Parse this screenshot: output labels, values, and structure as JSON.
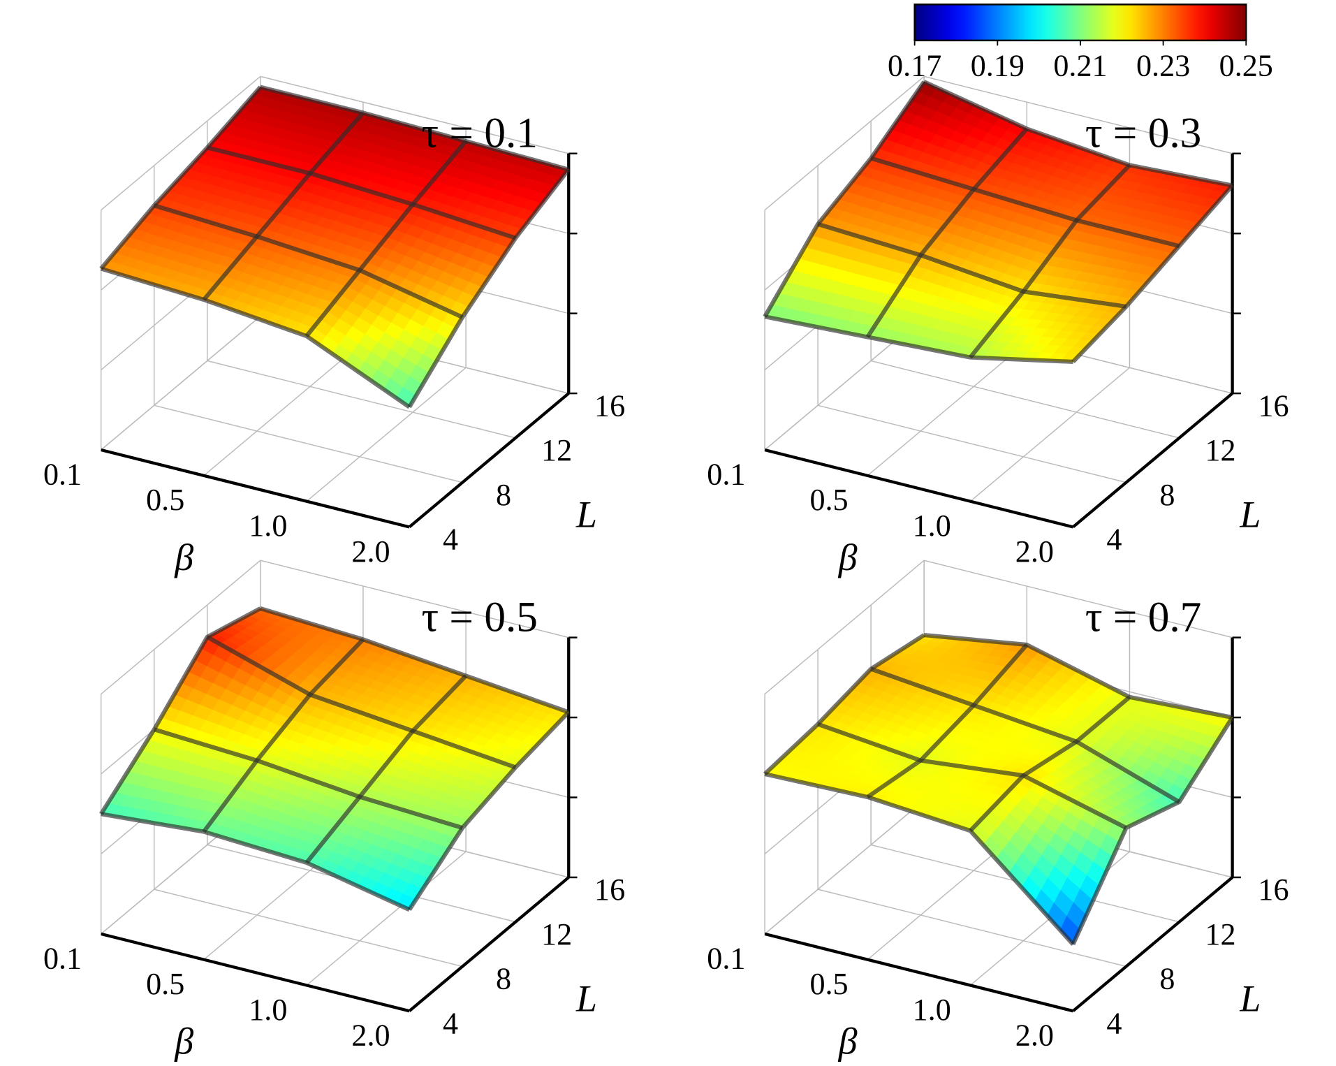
{
  "colorbar": {
    "colormap": "jet",
    "lim": [
      0.17,
      0.25
    ],
    "ticks": [
      0.17,
      0.19,
      0.21,
      0.23,
      0.25
    ]
  },
  "chart_data": [
    {
      "type": "surface",
      "title": "τ = 0.1",
      "xlabel": "β",
      "ylabel": "L",
      "categories": [
        "0.1",
        "0.5",
        "1.0",
        "2.0"
      ],
      "yticks": [
        4,
        8,
        12,
        16
      ],
      "ylim": [
        4,
        16
      ],
      "zlim": [
        0.16,
        0.25
      ],
      "zticks": [
        0.16,
        0.19,
        0.22,
        0.25
      ],
      "grid": true,
      "z": [
        [
          0.228,
          0.226,
          0.222,
          0.205
        ],
        [
          0.235,
          0.233,
          0.23,
          0.222
        ],
        [
          0.24,
          0.24,
          0.238,
          0.235
        ],
        [
          0.246,
          0.246,
          0.245,
          0.244
        ]
      ]
    },
    {
      "type": "surface",
      "title": "τ = 0.3",
      "xlabel": "β",
      "ylabel": "L",
      "categories": [
        "0.1",
        "0.5",
        "1.0",
        "2.0"
      ],
      "yticks": [
        4,
        8,
        12,
        16
      ],
      "ylim": [
        4,
        16
      ],
      "zlim": [
        0.16,
        0.25
      ],
      "zticks": [
        0.16,
        0.19,
        0.22,
        0.25
      ],
      "grid": true,
      "z": [
        [
          0.21,
          0.212,
          0.214,
          0.222
        ],
        [
          0.228,
          0.226,
          0.222,
          0.226
        ],
        [
          0.236,
          0.234,
          0.232,
          0.232
        ],
        [
          0.248,
          0.24,
          0.236,
          0.238
        ]
      ]
    },
    {
      "type": "surface",
      "title": "τ = 0.5",
      "xlabel": "β",
      "ylabel": "L",
      "categories": [
        "0.1",
        "0.5",
        "1.0",
        "2.0"
      ],
      "yticks": [
        4,
        8,
        12,
        16
      ],
      "ylim": [
        4,
        16
      ],
      "zlim": [
        0.16,
        0.25
      ],
      "zticks": [
        0.16,
        0.19,
        0.22,
        0.25
      ],
      "grid": true,
      "z": [
        [
          0.205,
          0.208,
          0.206,
          0.198
        ],
        [
          0.22,
          0.218,
          0.214,
          0.212
        ],
        [
          0.238,
          0.226,
          0.222,
          0.218
        ],
        [
          0.232,
          0.23,
          0.226,
          0.222
        ]
      ]
    },
    {
      "type": "surface",
      "title": "τ = 0.7",
      "xlabel": "β",
      "ylabel": "L",
      "categories": [
        "0.1",
        "0.5",
        "1.0",
        "2.0"
      ],
      "yticks": [
        4,
        8,
        12,
        16
      ],
      "ylim": [
        4,
        16
      ],
      "zlim": [
        0.16,
        0.25
      ],
      "zticks": [
        0.16,
        0.19,
        0.22,
        0.25
      ],
      "grid": true,
      "z": [
        [
          0.22,
          0.221,
          0.218,
          0.185
        ],
        [
          0.222,
          0.218,
          0.222,
          0.212
        ],
        [
          0.226,
          0.222,
          0.218,
          0.205
        ],
        [
          0.222,
          0.228,
          0.218,
          0.22
        ]
      ]
    }
  ]
}
